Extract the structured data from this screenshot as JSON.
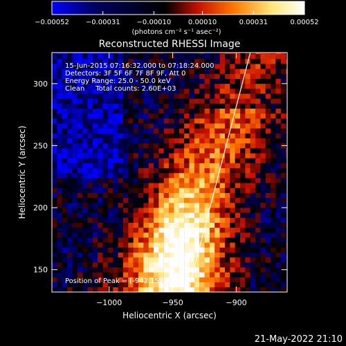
{
  "chart_data": {
    "type": "heatmap",
    "title": "Reconstructed RHESSI Image",
    "xlabel": "Heliocentric X (arcsec)",
    "ylabel": "Heliocentric Y (arcsec)",
    "xlim": [
      -1045,
      -860
    ],
    "ylim": [
      132,
      325
    ],
    "x_ticks": [
      -1000,
      -950,
      -900
    ],
    "x_tick_labels": [
      "−1000",
      "−950",
      "−900"
    ],
    "y_ticks": [
      150,
      200,
      250,
      300
    ],
    "y_tick_labels": [
      "150",
      "200",
      "250",
      "300"
    ],
    "colorbar": {
      "range": [
        -0.00052,
        0.00052
      ],
      "ticks": [
        -0.00052,
        -0.00031,
        -0.0001,
        0.0001,
        0.00031,
        0.00052
      ],
      "tick_labels": [
        "−0.00052",
        "−0.00031",
        "−0.00010",
        "0.00010",
        "0.00031",
        "0.00052"
      ],
      "unit_label": "(photons cm⁻² s⁻¹ asec⁻²)",
      "colormap": [
        "#0000ff",
        "#000060",
        "#000000",
        "#c81000",
        "#ff7800",
        "#ffe678",
        "#ffffff"
      ]
    },
    "info_lines": [
      "15-Jun-2015 07:16:32.000 to 07:18:24.000",
      "Detectors: 3F 5F 6F 7F 8F 9F, Att 0",
      "Energy Range: 25.0 - 50.0 keV",
      "Clean     Total counts: 2.60E+03"
    ],
    "peak_label": "Position of Peak = [-942,152]",
    "peak_position": [
      -942,
      152
    ],
    "limb_line": [
      [
        -938,
        132
      ],
      [
        -889,
        325
      ]
    ]
  },
  "footer": {
    "date_stamp": "21-May-2022 21:10"
  }
}
